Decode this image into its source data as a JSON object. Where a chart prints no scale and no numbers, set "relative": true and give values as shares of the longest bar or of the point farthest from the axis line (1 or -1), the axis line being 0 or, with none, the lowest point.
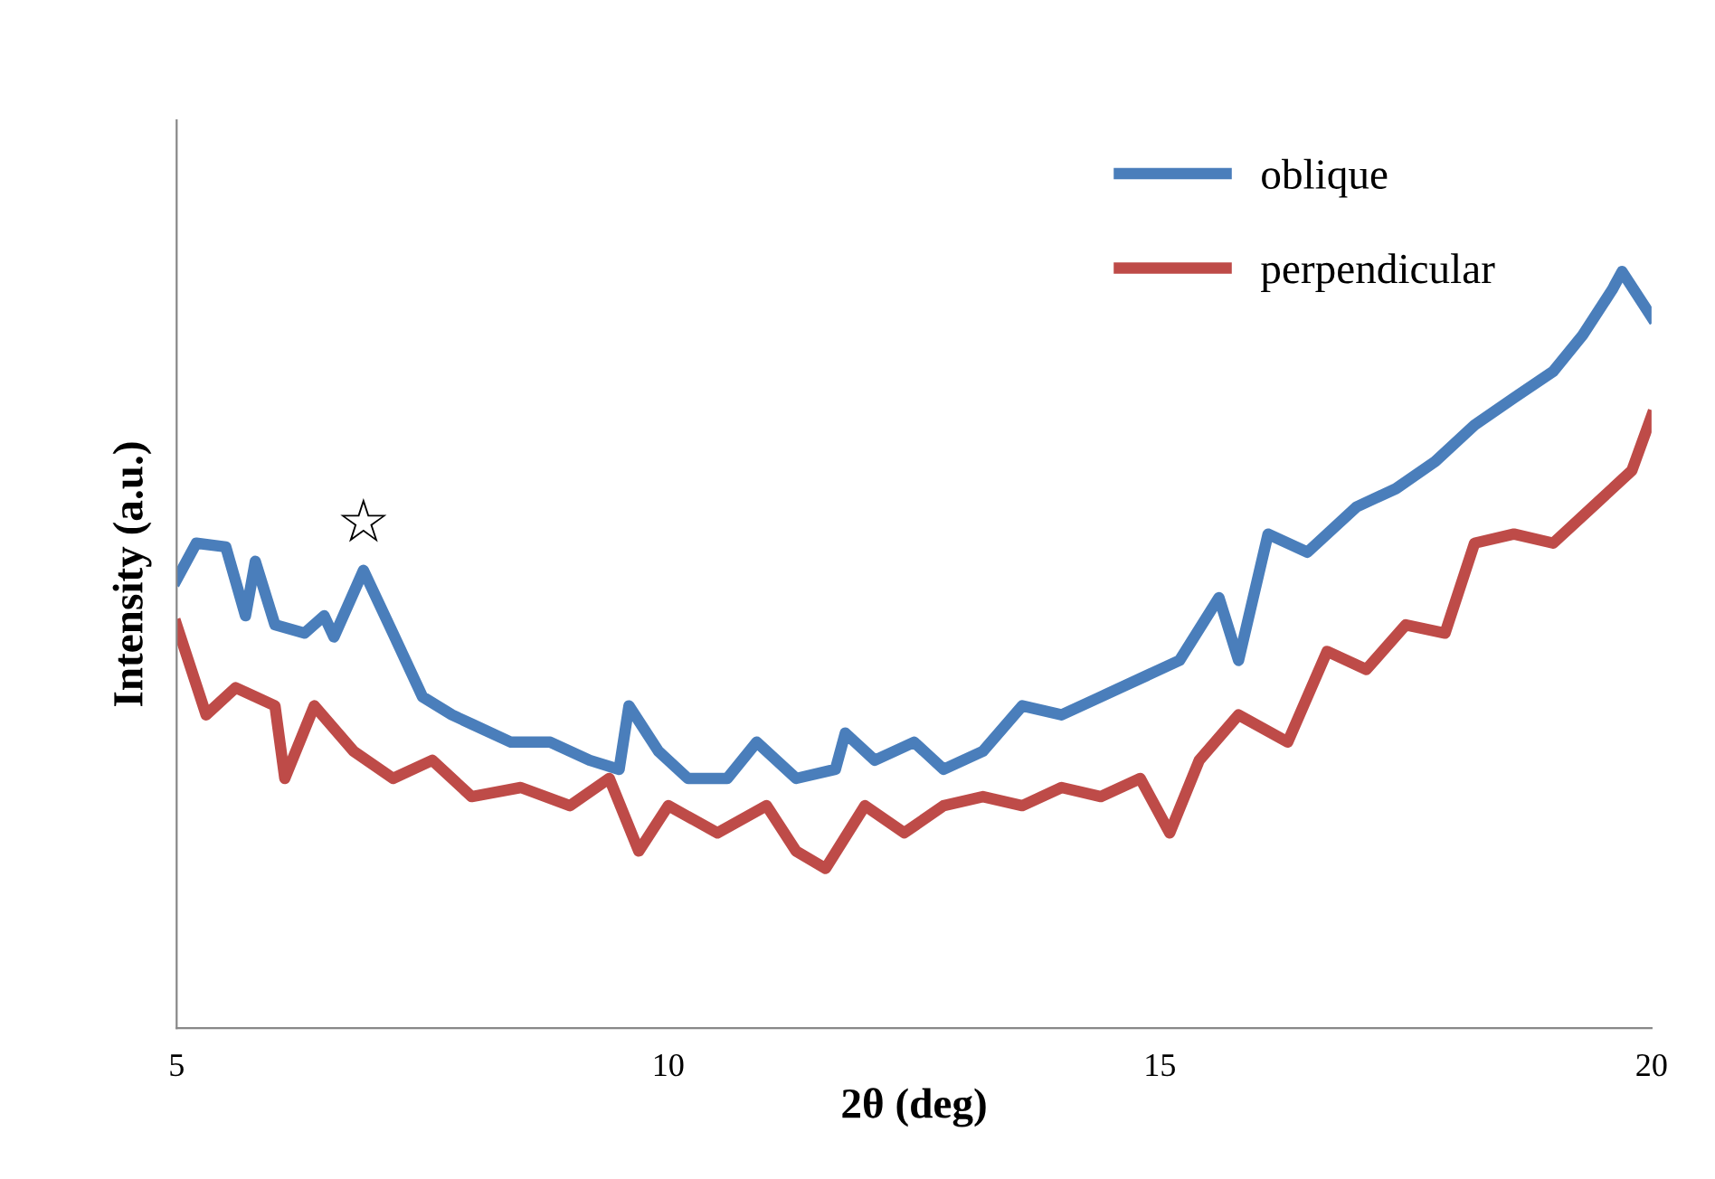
{
  "chart_data": {
    "type": "line",
    "xlabel": "2θ (deg)",
    "ylabel": "Intensity (a.u.)",
    "relative": true,
    "xlim": [
      5,
      20
    ],
    "xticks": [
      5,
      10,
      15,
      20
    ],
    "tick_labels": "x",
    "grid": false,
    "legend": "top right",
    "marker": "none",
    "line_style": "solid",
    "annotations": [
      {
        "text": "☆",
        "x": 6.9,
        "y": 0.605
      }
    ],
    "series": [
      {
        "name": "oblique",
        "color": "#4a7ebb",
        "x": [
          5.0,
          5.2,
          5.5,
          5.7,
          5.8,
          6.0,
          6.3,
          6.5,
          6.6,
          6.9,
          7.2,
          7.5,
          7.8,
          8.0,
          8.4,
          8.8,
          9.2,
          9.5,
          9.6,
          9.9,
          10.2,
          10.6,
          10.9,
          11.3,
          11.7,
          11.8,
          12.1,
          12.5,
          12.8,
          13.2,
          13.6,
          14.0,
          14.4,
          14.8,
          15.2,
          15.6,
          15.8,
          16.1,
          16.5,
          17.0,
          17.4,
          17.8,
          18.2,
          18.6,
          19.0,
          19.3,
          19.6,
          19.7,
          20.0
        ],
        "values": [
          0.593,
          0.641,
          0.636,
          0.545,
          0.617,
          0.533,
          0.522,
          0.545,
          0.517,
          0.605,
          0.522,
          0.438,
          0.414,
          0.402,
          0.378,
          0.378,
          0.354,
          0.342,
          0.426,
          0.366,
          0.33,
          0.33,
          0.378,
          0.33,
          0.342,
          0.39,
          0.354,
          0.378,
          0.342,
          0.366,
          0.426,
          0.414,
          0.438,
          0.462,
          0.486,
          0.569,
          0.486,
          0.653,
          0.629,
          0.689,
          0.713,
          0.749,
          0.797,
          0.833,
          0.868,
          0.916,
          0.976,
          1.0,
          0.94
        ]
      },
      {
        "name": "perpendicular",
        "color": "#be4b48",
        "x": [
          5.0,
          5.3,
          5.6,
          6.0,
          6.1,
          6.4,
          6.8,
          7.2,
          7.6,
          8.0,
          8.5,
          9.0,
          9.4,
          9.7,
          10.0,
          10.5,
          11.0,
          11.3,
          11.6,
          12.0,
          12.4,
          12.8,
          13.2,
          13.6,
          14.0,
          14.4,
          14.8,
          15.1,
          15.4,
          15.8,
          16.3,
          16.7,
          17.1,
          17.5,
          17.9,
          18.2,
          18.6,
          19.0,
          19.4,
          19.8,
          20.0
        ],
        "values": [
          0.533,
          0.414,
          0.45,
          0.426,
          0.33,
          0.426,
          0.366,
          0.33,
          0.354,
          0.306,
          0.318,
          0.294,
          0.33,
          0.234,
          0.294,
          0.258,
          0.294,
          0.234,
          0.211,
          0.294,
          0.258,
          0.294,
          0.306,
          0.294,
          0.318,
          0.306,
          0.33,
          0.258,
          0.354,
          0.414,
          0.378,
          0.498,
          0.474,
          0.533,
          0.522,
          0.641,
          0.653,
          0.641,
          0.689,
          0.737,
          0.809
        ]
      }
    ]
  }
}
